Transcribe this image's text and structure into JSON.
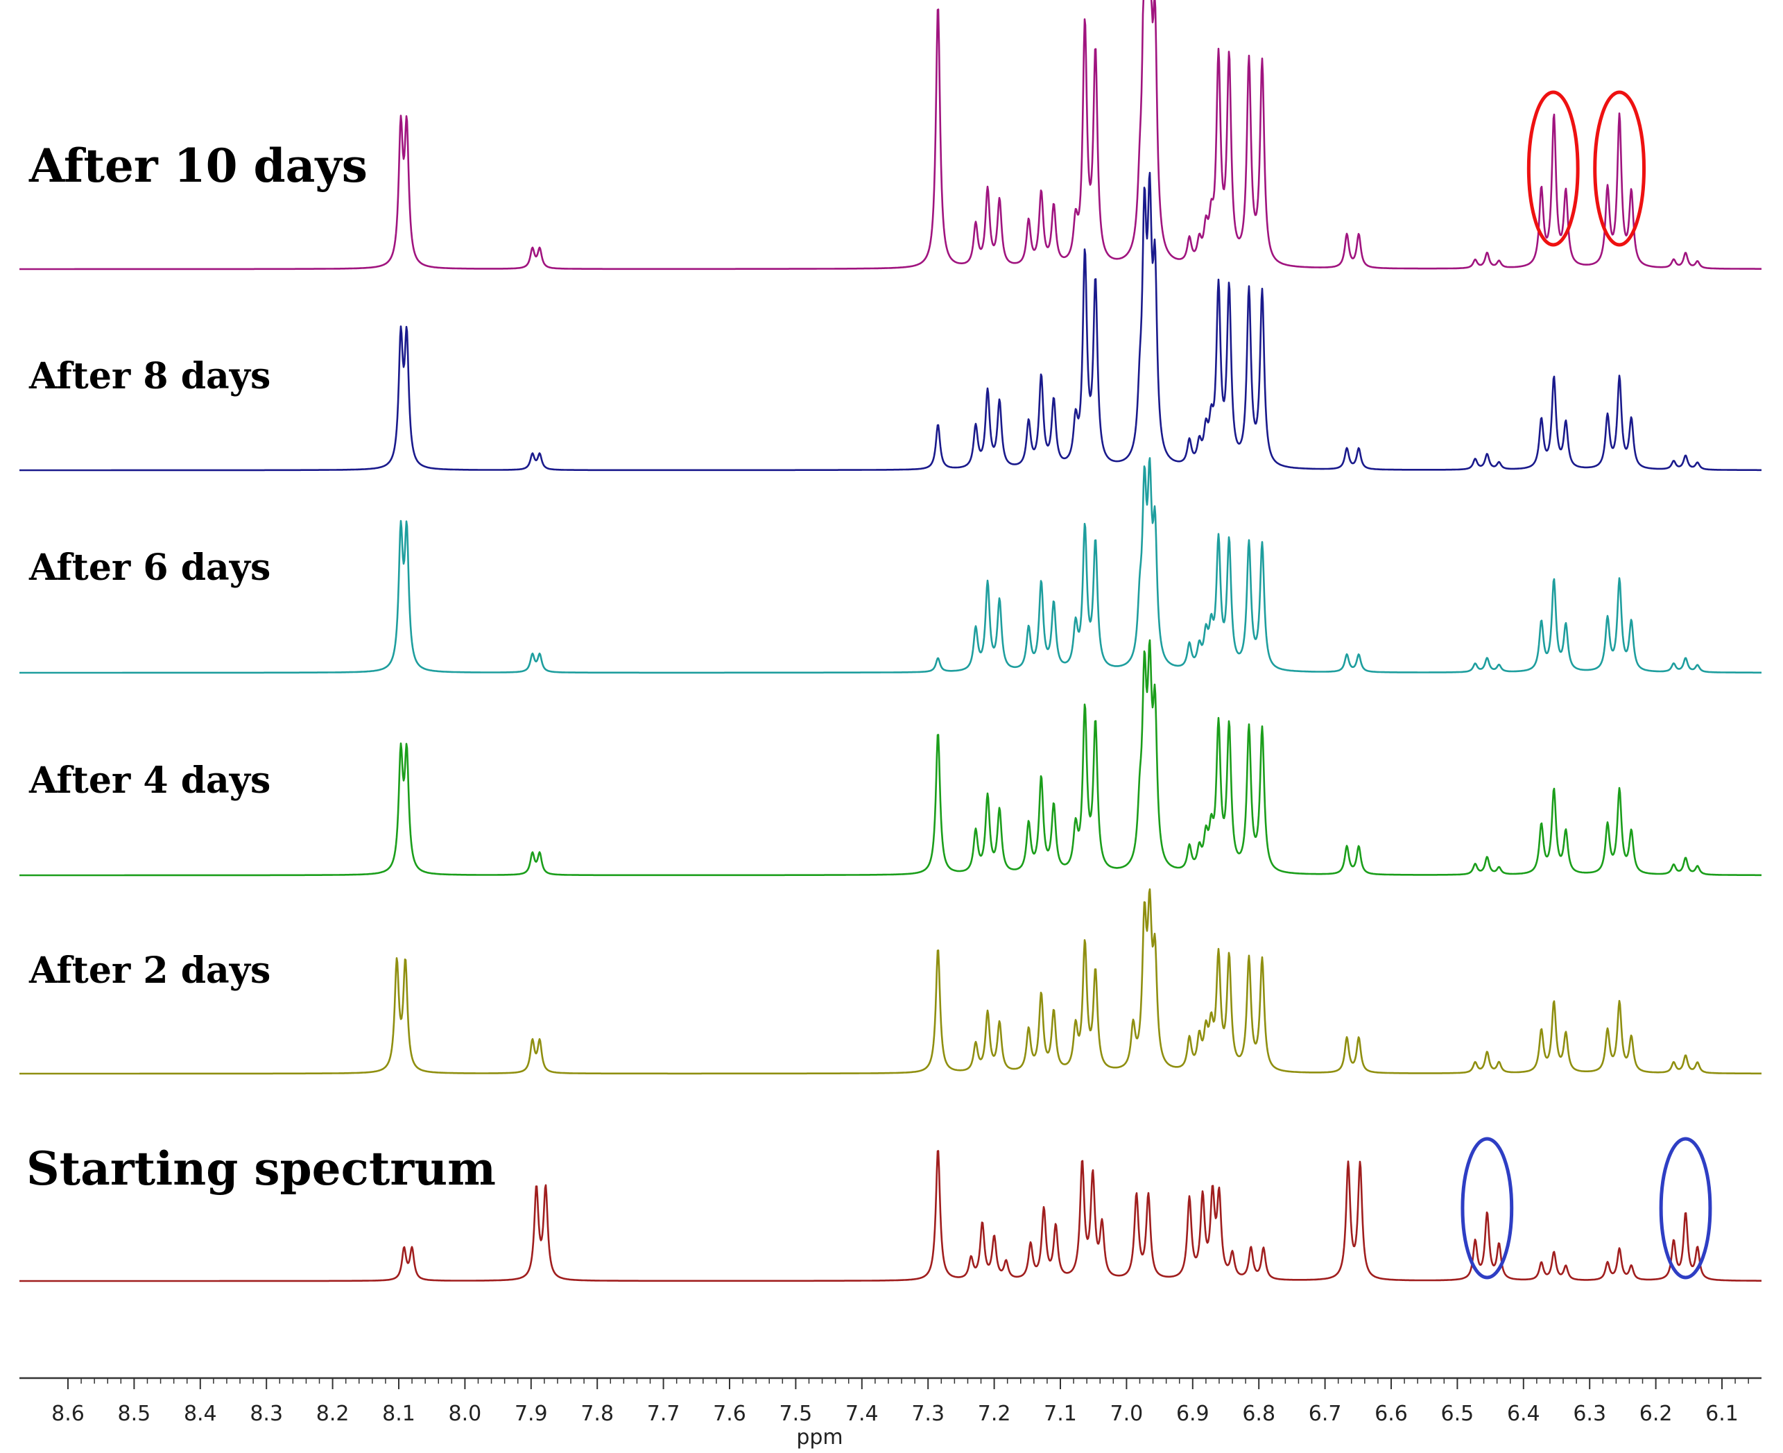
{
  "chart_data": {
    "type": "line",
    "title": "",
    "xlabel": "ppm",
    "ylabel": "",
    "xlim": [
      8.6,
      6.1
    ],
    "x_reversed": true,
    "grid": false,
    "x_major_ticks": [
      8.6,
      8.5,
      8.4,
      8.3,
      8.2,
      8.1,
      8.0,
      7.9,
      7.8,
      7.7,
      7.6,
      7.5,
      7.4,
      7.3,
      7.2,
      7.1,
      7.0,
      6.9,
      6.8,
      6.7,
      6.6,
      6.5,
      6.4,
      6.3,
      6.2,
      6.1
    ],
    "x_tick_labels": [
      "8.6",
      "8.5",
      "8.4",
      "8.3",
      "8.2",
      "8.1",
      "8.0",
      "7.9",
      "7.8",
      "7.7",
      "7.6",
      "7.5",
      "7.4",
      "7.3",
      "7.2",
      "7.1",
      "7.0",
      "6.9",
      "6.8",
      "6.7",
      "6.6",
      "6.5",
      "6.4",
      "6.3",
      "6.2",
      "6.1"
    ],
    "series": [
      {
        "name": "After 10 days",
        "color": "#A0147F",
        "peaks": [
          [
            8.097,
            192
          ],
          [
            8.088,
            192
          ],
          [
            7.898,
            28
          ],
          [
            7.887,
            28
          ],
          [
            7.285,
            380
          ],
          [
            7.228,
            60
          ],
          [
            7.21,
            110
          ],
          [
            7.192,
            95
          ],
          [
            7.148,
            65
          ],
          [
            7.129,
            105
          ],
          [
            7.11,
            85
          ],
          [
            7.077,
            55
          ],
          [
            7.063,
            340
          ],
          [
            7.047,
            300
          ],
          [
            6.98,
            70
          ],
          [
            6.973,
            380
          ],
          [
            6.965,
            380
          ],
          [
            6.957,
            300
          ],
          [
            6.905,
            35
          ],
          [
            6.89,
            30
          ],
          [
            6.88,
            45
          ],
          [
            6.872,
            50
          ],
          [
            6.861,
            290
          ],
          [
            6.845,
            290
          ],
          [
            6.815,
            290
          ],
          [
            6.795,
            290
          ],
          [
            6.667,
            48
          ],
          [
            6.649,
            48
          ],
          [
            6.473,
            12
          ],
          [
            6.455,
            22
          ],
          [
            6.437,
            10
          ],
          [
            6.373,
            110
          ],
          [
            6.354,
            215
          ],
          [
            6.336,
            105
          ],
          [
            6.273,
            110
          ],
          [
            6.255,
            215
          ],
          [
            6.237,
            105
          ],
          [
            6.173,
            12
          ],
          [
            6.155,
            22
          ],
          [
            6.137,
            10
          ]
        ]
      },
      {
        "name": "After 8 days",
        "color": "#1A1A8C",
        "peaks": [
          [
            8.097,
            180
          ],
          [
            8.088,
            180
          ],
          [
            7.898,
            22
          ],
          [
            7.887,
            22
          ],
          [
            7.285,
            65
          ],
          [
            7.228,
            60
          ],
          [
            7.21,
            110
          ],
          [
            7.192,
            95
          ],
          [
            7.148,
            65
          ],
          [
            7.129,
            130
          ],
          [
            7.11,
            95
          ],
          [
            7.077,
            60
          ],
          [
            7.063,
            300
          ],
          [
            7.047,
            260
          ],
          [
            6.98,
            70
          ],
          [
            6.973,
            320
          ],
          [
            6.965,
            320
          ],
          [
            6.957,
            250
          ],
          [
            6.905,
            35
          ],
          [
            6.89,
            30
          ],
          [
            6.88,
            45
          ],
          [
            6.872,
            50
          ],
          [
            6.861,
            250
          ],
          [
            6.845,
            250
          ],
          [
            6.815,
            250
          ],
          [
            6.795,
            250
          ],
          [
            6.667,
            30
          ],
          [
            6.649,
            30
          ],
          [
            6.473,
            15
          ],
          [
            6.455,
            22
          ],
          [
            6.437,
            10
          ],
          [
            6.373,
            70
          ],
          [
            6.354,
            130
          ],
          [
            6.336,
            65
          ],
          [
            6.273,
            75
          ],
          [
            6.255,
            130
          ],
          [
            6.237,
            70
          ],
          [
            6.173,
            12
          ],
          [
            6.155,
            20
          ],
          [
            6.137,
            10
          ]
        ]
      },
      {
        "name": "After 6 days",
        "color": "#1E9E9E",
        "peaks": [
          [
            8.097,
            190
          ],
          [
            8.088,
            190
          ],
          [
            7.898,
            25
          ],
          [
            7.887,
            25
          ],
          [
            7.285,
            20
          ],
          [
            7.228,
            60
          ],
          [
            7.21,
            125
          ],
          [
            7.192,
            100
          ],
          [
            7.148,
            60
          ],
          [
            7.129,
            125
          ],
          [
            7.11,
            95
          ],
          [
            7.077,
            60
          ],
          [
            7.063,
            200
          ],
          [
            7.047,
            180
          ],
          [
            6.98,
            70
          ],
          [
            6.973,
            230
          ],
          [
            6.965,
            230
          ],
          [
            6.957,
            180
          ],
          [
            6.905,
            35
          ],
          [
            6.89,
            30
          ],
          [
            6.88,
            45
          ],
          [
            6.872,
            50
          ],
          [
            6.861,
            180
          ],
          [
            6.845,
            180
          ],
          [
            6.815,
            180
          ],
          [
            6.795,
            180
          ],
          [
            6.667,
            25
          ],
          [
            6.649,
            25
          ],
          [
            6.473,
            12
          ],
          [
            6.455,
            20
          ],
          [
            6.437,
            10
          ],
          [
            6.373,
            70
          ],
          [
            6.354,
            130
          ],
          [
            6.336,
            65
          ],
          [
            6.273,
            75
          ],
          [
            6.255,
            130
          ],
          [
            6.237,
            70
          ],
          [
            6.173,
            12
          ],
          [
            6.155,
            20
          ],
          [
            6.137,
            10
          ]
        ]
      },
      {
        "name": "After 4 days",
        "color": "#1B9E1B",
        "peaks": [
          [
            8.097,
            165
          ],
          [
            8.088,
            165
          ],
          [
            7.898,
            30
          ],
          [
            7.887,
            30
          ],
          [
            7.285,
            205
          ],
          [
            7.228,
            60
          ],
          [
            7.21,
            110
          ],
          [
            7.192,
            90
          ],
          [
            7.148,
            70
          ],
          [
            7.129,
            135
          ],
          [
            7.11,
            95
          ],
          [
            7.077,
            60
          ],
          [
            7.063,
            230
          ],
          [
            7.047,
            210
          ],
          [
            6.98,
            70
          ],
          [
            6.973,
            250
          ],
          [
            6.965,
            250
          ],
          [
            6.957,
            210
          ],
          [
            6.905,
            35
          ],
          [
            6.89,
            30
          ],
          [
            6.88,
            45
          ],
          [
            6.872,
            50
          ],
          [
            6.861,
            205
          ],
          [
            6.845,
            205
          ],
          [
            6.815,
            205
          ],
          [
            6.795,
            205
          ],
          [
            6.667,
            40
          ],
          [
            6.649,
            40
          ],
          [
            6.473,
            15
          ],
          [
            6.455,
            25
          ],
          [
            6.437,
            10
          ],
          [
            6.373,
            70
          ],
          [
            6.354,
            120
          ],
          [
            6.336,
            60
          ],
          [
            6.273,
            70
          ],
          [
            6.255,
            120
          ],
          [
            6.237,
            60
          ],
          [
            6.173,
            14
          ],
          [
            6.155,
            24
          ],
          [
            6.137,
            12
          ]
        ]
      },
      {
        "name": "After 2 days",
        "color": "#8F8F10",
        "peaks": [
          [
            8.103,
            155
          ],
          [
            8.09,
            155
          ],
          [
            7.898,
            45
          ],
          [
            7.887,
            45
          ],
          [
            7.285,
            180
          ],
          [
            7.228,
            40
          ],
          [
            7.21,
            85
          ],
          [
            7.192,
            70
          ],
          [
            7.148,
            60
          ],
          [
            7.129,
            110
          ],
          [
            7.11,
            85
          ],
          [
            7.077,
            60
          ],
          [
            7.063,
            180
          ],
          [
            7.047,
            140
          ],
          [
            6.99,
            60
          ],
          [
            6.973,
            200
          ],
          [
            6.965,
            200
          ],
          [
            6.957,
            150
          ],
          [
            6.905,
            45
          ],
          [
            6.89,
            45
          ],
          [
            6.88,
            50
          ],
          [
            6.872,
            55
          ],
          [
            6.861,
            160
          ],
          [
            6.845,
            160
          ],
          [
            6.815,
            160
          ],
          [
            6.795,
            160
          ],
          [
            6.667,
            50
          ],
          [
            6.649,
            50
          ],
          [
            6.473,
            15
          ],
          [
            6.455,
            30
          ],
          [
            6.437,
            15
          ],
          [
            6.373,
            60
          ],
          [
            6.354,
            100
          ],
          [
            6.336,
            55
          ],
          [
            6.273,
            60
          ],
          [
            6.255,
            100
          ],
          [
            6.237,
            50
          ],
          [
            6.173,
            15
          ],
          [
            6.155,
            25
          ],
          [
            6.137,
            15
          ]
        ]
      },
      {
        "name": "Starting spectrum",
        "color": "#A01E1E",
        "peaks": [
          [
            8.092,
            45
          ],
          [
            8.08,
            45
          ],
          [
            7.892,
            130
          ],
          [
            7.878,
            130
          ],
          [
            7.285,
            190
          ],
          [
            7.235,
            30
          ],
          [
            7.218,
            80
          ],
          [
            7.2,
            60
          ],
          [
            7.182,
            25
          ],
          [
            7.145,
            50
          ],
          [
            7.125,
            100
          ],
          [
            7.107,
            75
          ],
          [
            7.067,
            165
          ],
          [
            7.051,
            145
          ],
          [
            7.037,
            75
          ],
          [
            6.985,
            120
          ],
          [
            6.967,
            120
          ],
          [
            6.905,
            115
          ],
          [
            6.885,
            115
          ],
          [
            6.87,
            115
          ],
          [
            6.86,
            115
          ],
          [
            6.84,
            35
          ],
          [
            6.812,
            45
          ],
          [
            6.793,
            45
          ],
          [
            6.665,
            165
          ],
          [
            6.647,
            165
          ],
          [
            6.473,
            55
          ],
          [
            6.455,
            95
          ],
          [
            6.437,
            50
          ],
          [
            6.373,
            25
          ],
          [
            6.354,
            40
          ],
          [
            6.336,
            20
          ],
          [
            6.273,
            25
          ],
          [
            6.255,
            45
          ],
          [
            6.237,
            20
          ],
          [
            6.173,
            55
          ],
          [
            6.155,
            95
          ],
          [
            6.137,
            45
          ]
        ]
      }
    ],
    "annotations": [
      {
        "type": "ellipse",
        "color": "#EE1111",
        "series": "After 10 days",
        "x_range": [
          6.39,
          6.32
        ],
        "label": ""
      },
      {
        "type": "ellipse",
        "color": "#EE1111",
        "series": "After 10 days",
        "x_range": [
          6.29,
          6.22
        ],
        "label": ""
      },
      {
        "type": "ellipse",
        "color": "#2E3EC4",
        "series": "Starting spectrum",
        "x_range": [
          6.49,
          6.42
        ],
        "label": ""
      },
      {
        "type": "ellipse",
        "color": "#2E3EC4",
        "series": "Starting spectrum",
        "x_range": [
          6.19,
          6.12
        ],
        "label": ""
      }
    ]
  }
}
